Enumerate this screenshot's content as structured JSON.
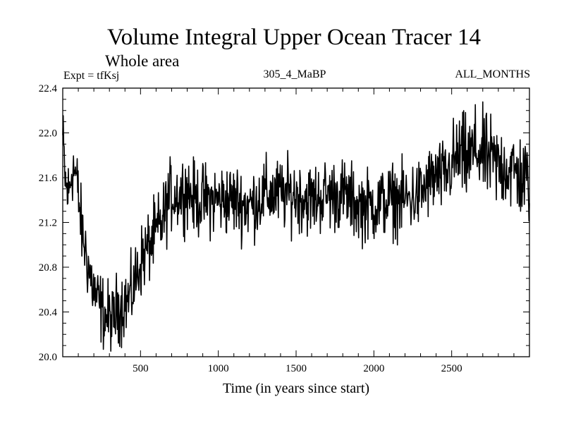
{
  "chart_data": {
    "type": "line",
    "title": "Volume Integral Upper Ocean Tracer 14",
    "subtitle": "Whole area",
    "experiment_label": "Expt = tfKsj",
    "run_label": "305_4_MaBP",
    "months_label": "ALL_MONTHS",
    "xlabel": "Time (in years since start)",
    "ylabel": "",
    "xlim": [
      0,
      3000
    ],
    "ylim": [
      20.0,
      22.4
    ],
    "x_ticks": [
      500,
      1000,
      1500,
      2000,
      2500
    ],
    "y_ticks": [
      "20.0",
      "20.4",
      "20.8",
      "21.2",
      "21.6",
      "22.0",
      "22.4"
    ],
    "line_color": "#000000",
    "series": [
      {
        "name": "Tracer 14",
        "x": [
          0,
          20,
          40,
          60,
          80,
          100,
          120,
          140,
          160,
          180,
          200,
          220,
          240,
          260,
          280,
          300,
          320,
          340,
          360,
          380,
          400,
          420,
          440,
          460,
          480,
          500,
          520,
          540,
          560,
          580,
          600,
          620,
          640,
          660,
          680,
          700,
          750,
          800,
          850,
          900,
          1000,
          1100,
          1200,
          1300,
          1400,
          1500,
          1600,
          1700,
          1800,
          1900,
          2000,
          2100,
          2200,
          2300,
          2350,
          2400,
          2450,
          2500,
          2550,
          2600,
          2650,
          2700,
          2750,
          2800,
          2850,
          2900,
          2950,
          3000
        ],
        "y": [
          21.95,
          21.5,
          21.45,
          21.7,
          21.65,
          21.45,
          21.15,
          21.0,
          20.85,
          20.7,
          20.6,
          20.5,
          20.45,
          20.4,
          20.35,
          20.35,
          20.3,
          20.4,
          20.45,
          20.45,
          20.5,
          20.5,
          20.55,
          20.65,
          20.75,
          20.85,
          20.9,
          20.95,
          21.0,
          21.05,
          21.1,
          21.15,
          21.2,
          21.3,
          21.4,
          21.45,
          21.45,
          21.5,
          21.4,
          21.4,
          21.4,
          21.4,
          21.35,
          21.45,
          21.45,
          21.45,
          21.4,
          21.45,
          21.45,
          21.35,
          21.35,
          21.4,
          21.4,
          21.45,
          21.55,
          21.6,
          21.6,
          21.7,
          21.8,
          21.75,
          21.85,
          21.8,
          21.75,
          21.7,
          21.7,
          21.65,
          21.6,
          21.55
        ]
      }
    ]
  }
}
